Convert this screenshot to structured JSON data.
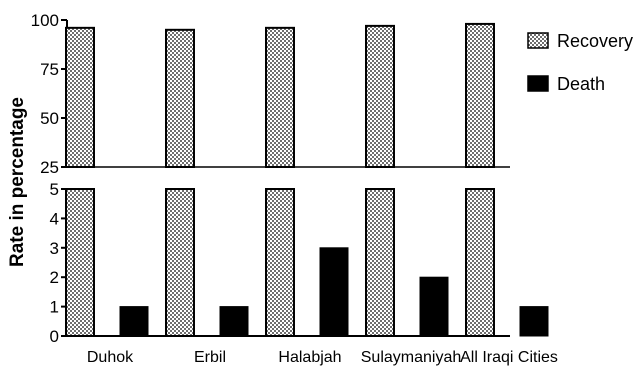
{
  "chart_data": {
    "type": "bar",
    "axis_break": true,
    "categories": [
      "Duhok",
      "Erbil",
      "Halabjah",
      "Sulaymaniyah",
      "All Iraqi Cities"
    ],
    "series": [
      {
        "name": "Recovery",
        "values": [
          96,
          95,
          96,
          97,
          98
        ],
        "pattern": "checkered",
        "color": "#888888"
      },
      {
        "name": "Death",
        "values": [
          1,
          1,
          3,
          2,
          1
        ],
        "pattern": "solid",
        "color": "#000000"
      }
    ],
    "ylabel": "Rate in percentage",
    "xlabel": "",
    "title": "",
    "y_lower": {
      "range": [
        0,
        5
      ],
      "ticks": [
        0,
        1,
        2,
        3,
        4,
        5
      ]
    },
    "y_upper": {
      "range": [
        25,
        100
      ],
      "ticks": [
        25,
        50,
        75,
        100
      ]
    },
    "grid": false,
    "legend_position": "top-right"
  }
}
